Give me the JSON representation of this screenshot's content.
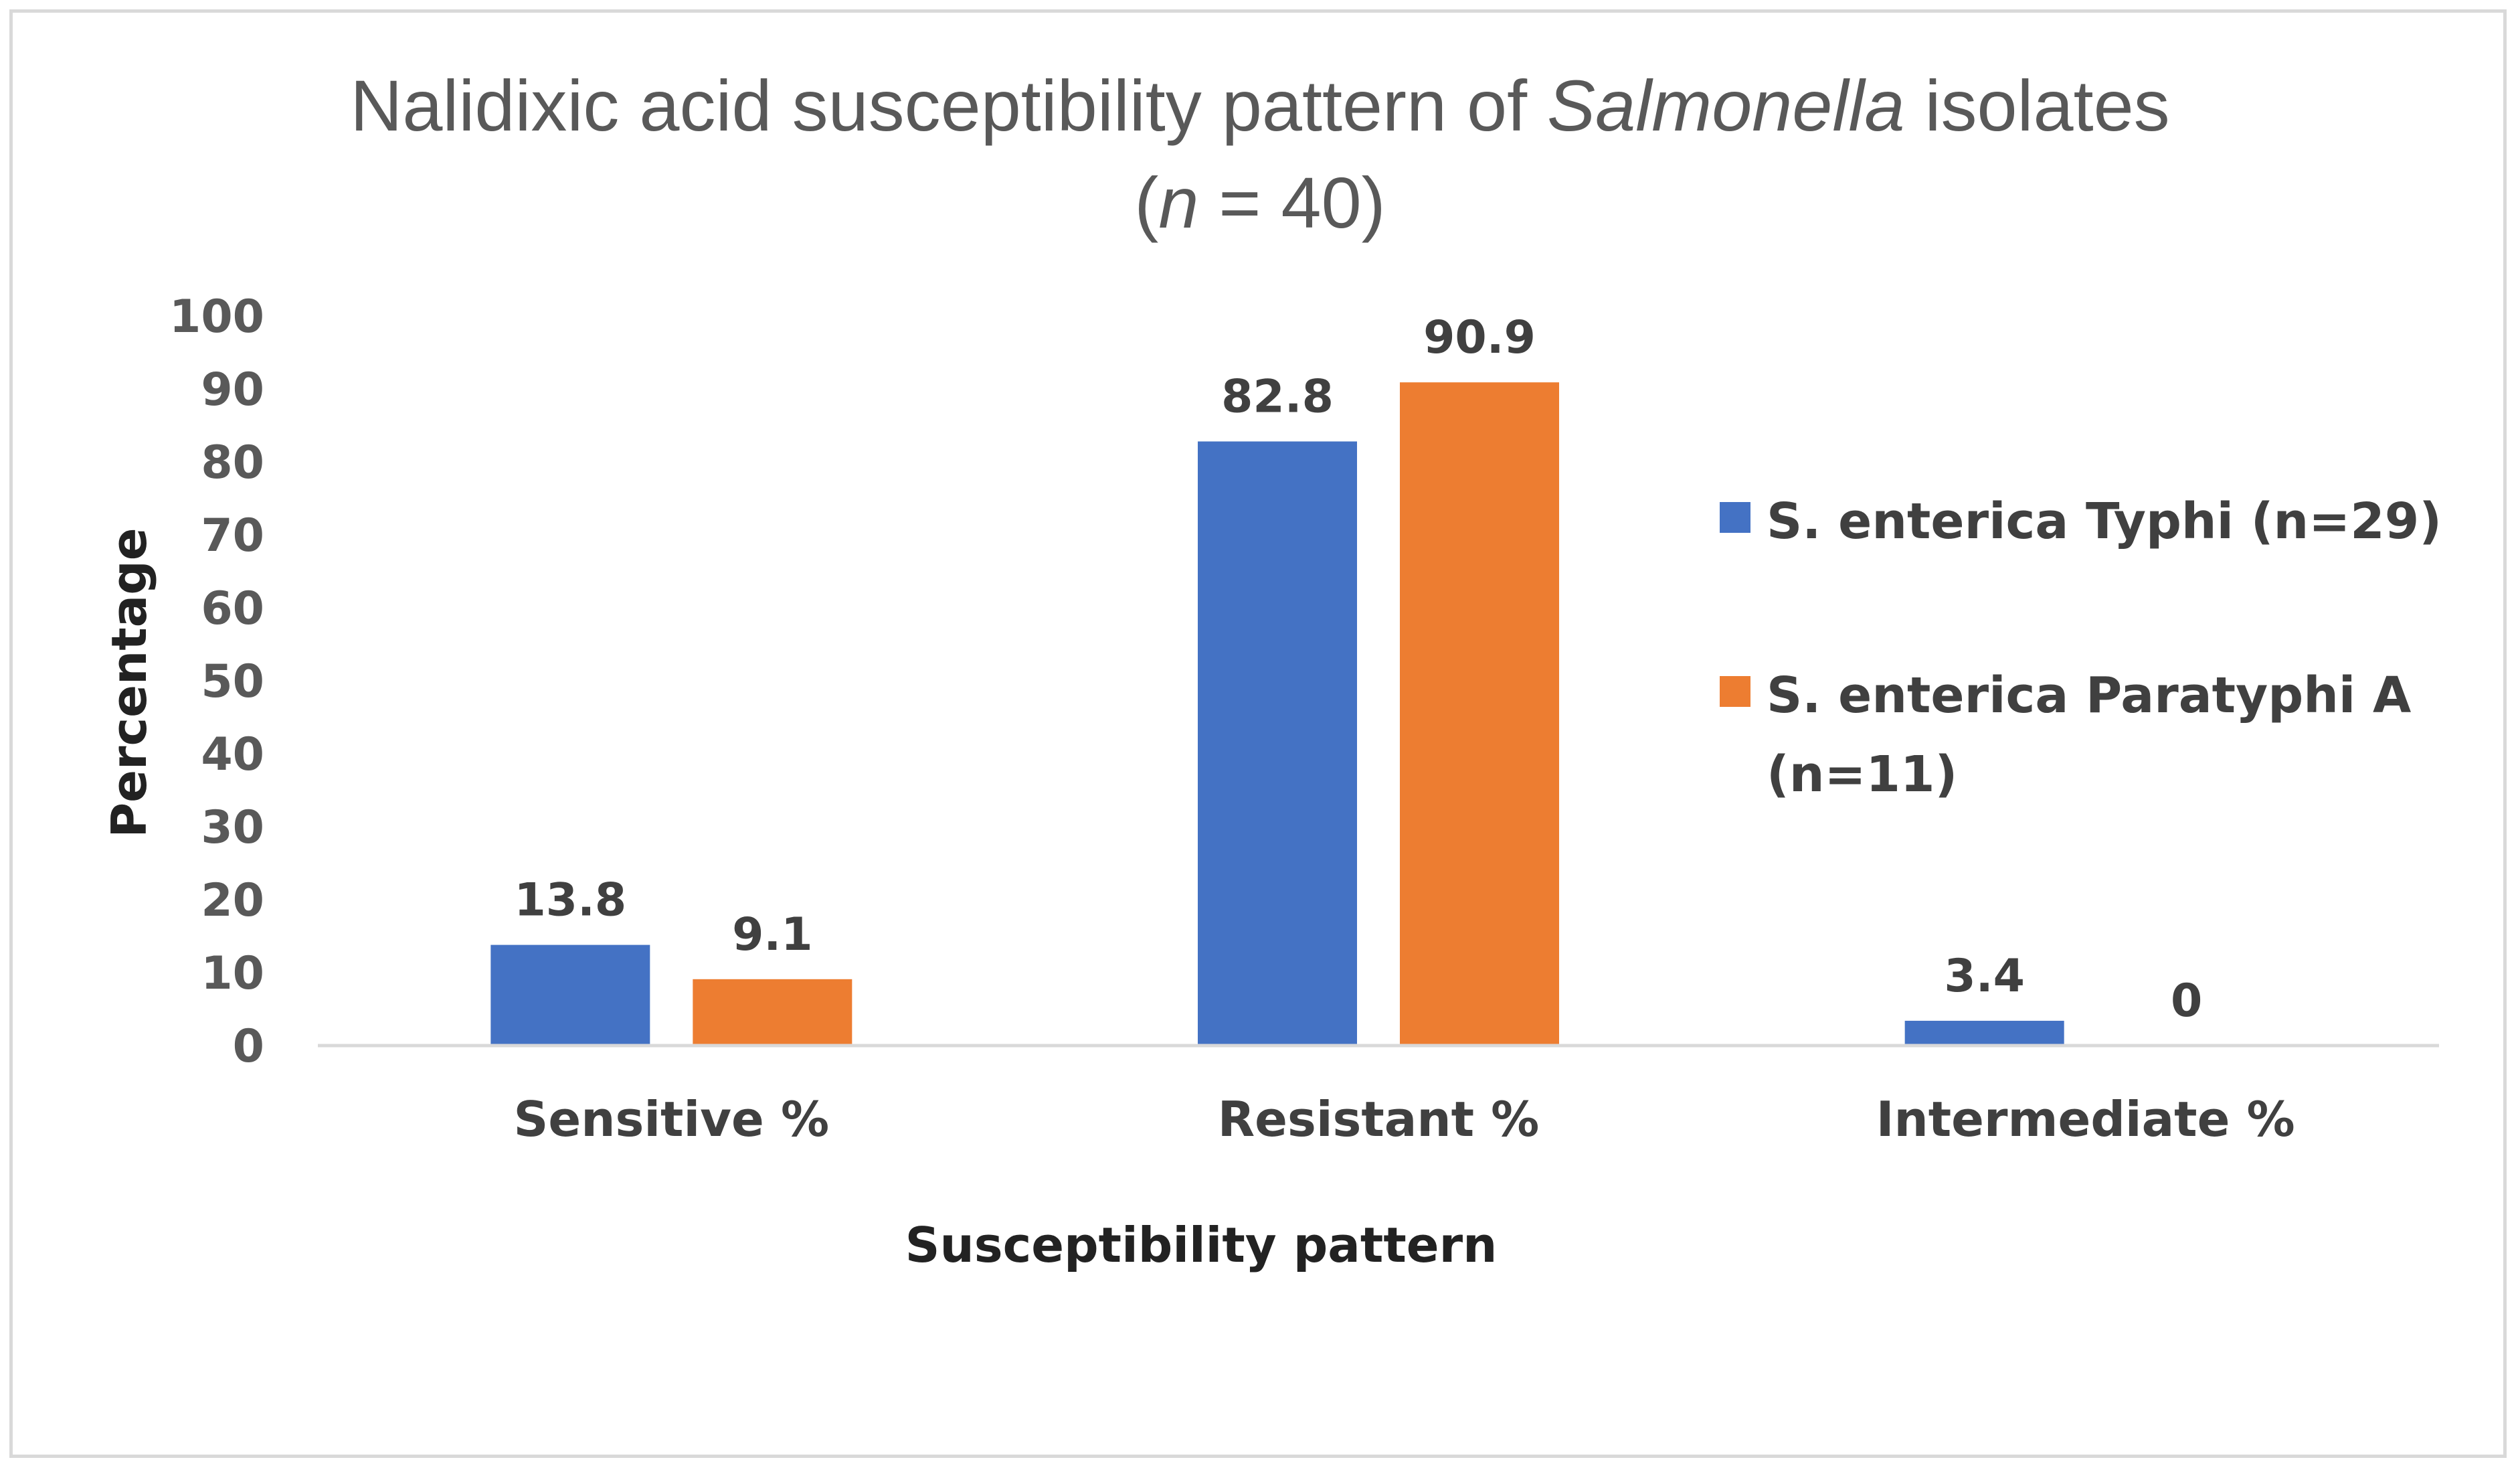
{
  "chart_data": {
    "type": "bar",
    "title_parts": [
      "Nalidixic acid susceptibility pattern of ",
      "Salmonella",
      " isolates"
    ],
    "subtitle_parts": [
      "(",
      "n",
      " = 40)"
    ],
    "categories": [
      "Sensitive %",
      "Resistant %",
      "Intermediate %"
    ],
    "series": [
      {
        "name": "S. enterica Typhi (n=29)",
        "legend_lines": [
          "S. enterica Typhi (n=29)"
        ],
        "color": "#4472C4",
        "values": [
          13.8,
          82.8,
          3.4
        ],
        "labels": [
          "13.8",
          "82.8",
          "3.4"
        ]
      },
      {
        "name": "S. enterica Paratyphi A (n=11)",
        "legend_lines": [
          "S. enterica Paratyphi A",
          "(n=11)"
        ],
        "color": "#ED7D31",
        "values": [
          9.1,
          90.9,
          0
        ],
        "labels": [
          "9.1",
          "90.9",
          "0"
        ]
      }
    ],
    "xlabel": "Susceptibility pattern",
    "ylabel": "Percentage",
    "ylim": [
      0,
      100
    ],
    "yticks": [
      0,
      10,
      20,
      30,
      40,
      50,
      60,
      70,
      80,
      90,
      100
    ],
    "grid": false,
    "legend_position": "right"
  }
}
